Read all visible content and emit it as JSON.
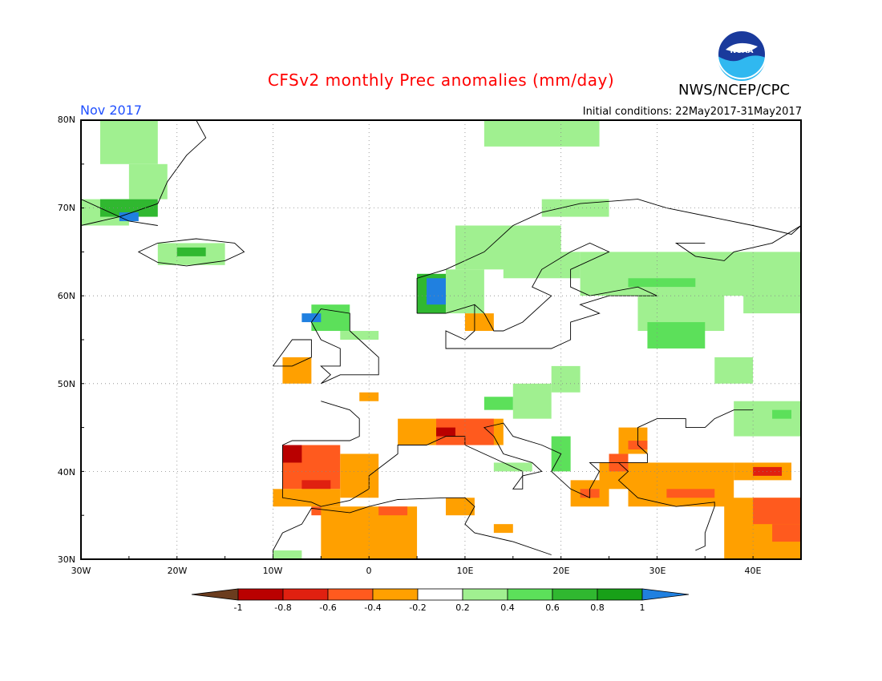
{
  "header": {
    "title": "CFSv2 monthly Prec anomalies (mm/day)",
    "agency": "NWS/NCEP/CPC",
    "logo_text": "NOAA",
    "valid_month": "Nov 2017",
    "initial_conditions": "Initial conditions: 22May2017-31May2017"
  },
  "axes": {
    "lat_labels": [
      "80N",
      "70N",
      "60N",
      "50N",
      "40N",
      "30N"
    ],
    "lon_labels": [
      "30W",
      "20W",
      "10W",
      "0",
      "10E",
      "20E",
      "30E",
      "40E"
    ]
  },
  "colorbar": {
    "labels": [
      "-1",
      "-0.8",
      "-0.6",
      "-0.4",
      "-0.2",
      "0.2",
      "0.4",
      "0.6",
      "0.8",
      "1"
    ],
    "colors": {
      "lt_m1": "#6b3c1e",
      "m1_m08": "#b90000",
      "m08_m06": "#e02010",
      "m06_m04": "#ff5a1e",
      "m04_m02": "#ffa000",
      "m02_02": "#ffffff",
      "02_04": "#a0f090",
      "04_06": "#5ce05a",
      "06_08": "#30b830",
      "08_1": "#18a018",
      "gt_1": "#2080e0"
    }
  },
  "map": {
    "region": "Europe",
    "lon_range": [
      -30,
      45
    ],
    "lat_range": [
      30,
      80
    ],
    "grid": true
  }
}
